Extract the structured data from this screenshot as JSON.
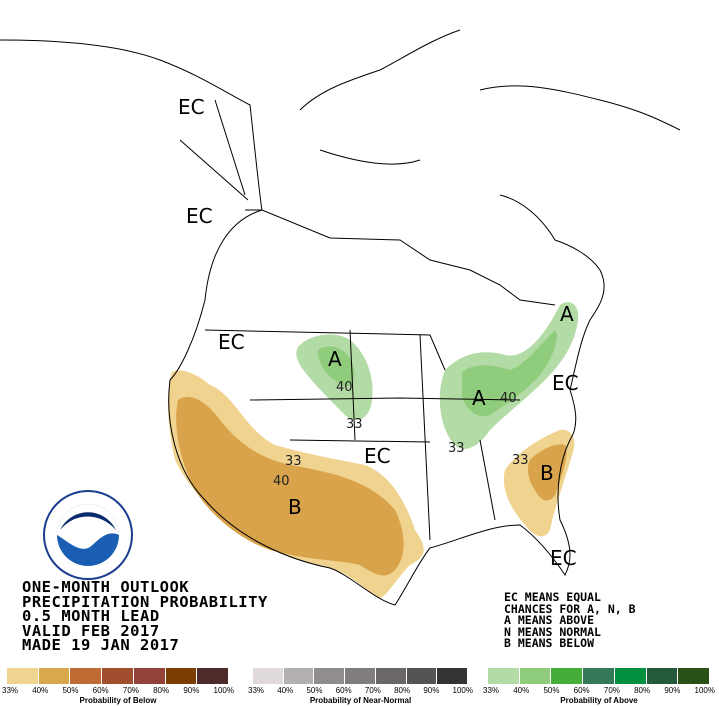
{
  "map": {
    "labels": {
      "ec_alaska": "EC",
      "ec_bc": "EC",
      "ec_pnw": "EC",
      "a_dakotas": "A",
      "n40_dakotas": "40",
      "n33_dakotas": "33",
      "ec_plains": "EC",
      "n33_sw": "33",
      "n40_sw": "40",
      "b_sw": "B",
      "a_lakes": "A",
      "n40_lakes": "40",
      "a_ne": "A",
      "ec_ne": "EC",
      "n33_ohio": "33",
      "n33_se": "33",
      "b_se": "B",
      "ec_fl": "EC"
    },
    "colors": {
      "below_33": "#f0d38e",
      "below_40": "#d8a34a",
      "above_33": "#b3dba5",
      "above_40": "#8fcc7c"
    }
  },
  "info": {
    "lines": [
      "ONE-MONTH OUTLOOK",
      "PRECIPITATION PROBABILITY",
      "0.5 MONTH LEAD",
      "VALID FEB 2017",
      "MADE 19 JAN 2017"
    ]
  },
  "key": {
    "lines": [
      "EC MEANS EQUAL",
      "CHANCES FOR A, N, B",
      "A MEANS ABOVE",
      "N MEANS NORMAL",
      "B MEANS BELOW"
    ]
  },
  "legend": {
    "ticks": [
      "33%",
      "40%",
      "50%",
      "60%",
      "70%",
      "80%",
      "90%",
      "100%"
    ],
    "below": {
      "title": "Probability of Below",
      "colors": [
        "#f0d38e",
        "#d8a84c",
        "#bf6b33",
        "#a04e2e",
        "#924238",
        "#7a3f00",
        "#4f2a2a"
      ]
    },
    "normal": {
      "title": "Probability of Near-Normal",
      "colors": [
        "#e0dadb",
        "#b5b0b0",
        "#918d8c",
        "#807d7c",
        "#6a6766",
        "#555353",
        "#333333"
      ]
    },
    "above": {
      "title": "Probability of Above",
      "colors": [
        "#b3dba5",
        "#8fcc7c",
        "#45ad3a",
        "#357a58",
        "#009040",
        "#245a3a",
        "#2a5218"
      ]
    }
  }
}
